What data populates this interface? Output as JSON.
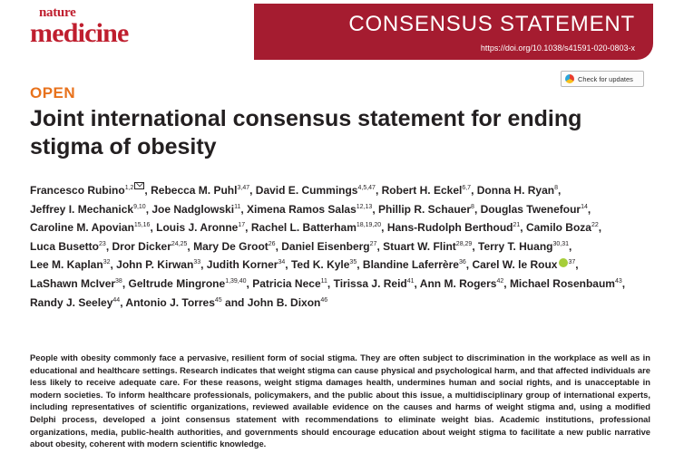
{
  "journal": {
    "name_line1": "nature",
    "name_line2": "medicine"
  },
  "banner": {
    "article_type": "CONSENSUS STATEMENT",
    "doi": "https://doi.org/10.1038/s41591-020-0803-x"
  },
  "check_updates": {
    "label": "Check for updates",
    "icon": "crossmark-icon"
  },
  "access_label": "OPEN",
  "title": "Joint international consensus statement for ending stigma of obesity",
  "authors": [
    {
      "name": "Francesco Rubino",
      "aff": "1,2",
      "corresponding": true
    },
    {
      "name": "Rebecca M. Puhl",
      "aff": "3,47"
    },
    {
      "name": "David E. Cummings",
      "aff": "4,5,47"
    },
    {
      "name": "Robert H. Eckel",
      "aff": "6,7"
    },
    {
      "name": "Donna H. Ryan",
      "aff": "8"
    },
    {
      "name": "Jeffrey I. Mechanick",
      "aff": "9,10"
    },
    {
      "name": "Joe Nadglowski",
      "aff": "11"
    },
    {
      "name": "Ximena Ramos Salas",
      "aff": "12,13"
    },
    {
      "name": "Phillip R. Schauer",
      "aff": "8"
    },
    {
      "name": "Douglas Twenefour",
      "aff": "14"
    },
    {
      "name": "Caroline M. Apovian",
      "aff": "15,16"
    },
    {
      "name": "Louis J. Aronne",
      "aff": "17"
    },
    {
      "name": "Rachel L. Batterham",
      "aff": "18,19,20"
    },
    {
      "name": "Hans-Rudolph Berthoud",
      "aff": "21"
    },
    {
      "name": "Camilo Boza",
      "aff": "22"
    },
    {
      "name": "Luca Busetto",
      "aff": "23"
    },
    {
      "name": "Dror Dicker",
      "aff": "24,25"
    },
    {
      "name": "Mary De Groot",
      "aff": "26"
    },
    {
      "name": "Daniel Eisenberg",
      "aff": "27"
    },
    {
      "name": "Stuart W. Flint",
      "aff": "28,29"
    },
    {
      "name": "Terry T. Huang",
      "aff": "30,31"
    },
    {
      "name": "Lee M. Kaplan",
      "aff": "32"
    },
    {
      "name": "John P. Kirwan",
      "aff": "33"
    },
    {
      "name": "Judith Korner",
      "aff": "34"
    },
    {
      "name": "Ted K. Kyle",
      "aff": "35"
    },
    {
      "name": "Blandine Laferrère",
      "aff": "36"
    },
    {
      "name": "Carel W. le Roux",
      "aff": "37",
      "orcid": true
    },
    {
      "name": "LaShawn McIver",
      "aff": "38"
    },
    {
      "name": "Geltrude Mingrone",
      "aff": "1,39,40"
    },
    {
      "name": "Patricia Nece",
      "aff": "11"
    },
    {
      "name": "Tirissa J. Reid",
      "aff": "41"
    },
    {
      "name": "Ann M. Rogers",
      "aff": "42"
    },
    {
      "name": "Michael Rosenbaum",
      "aff": "43"
    },
    {
      "name": "Randy J. Seeley",
      "aff": "44"
    },
    {
      "name": "Antonio J. Torres",
      "aff": "45"
    },
    {
      "name": "John B. Dixon",
      "aff": "46"
    }
  ],
  "author_separator": ",",
  "author_final_conjunction": "and",
  "abstract": "People with obesity commonly face a pervasive, resilient form of social stigma. They are often subject to discrimination in the workplace as well as in educational and healthcare settings. Research indicates that weight stigma can cause physical and psychological harm, and that affected individuals are less likely to receive adequate care. For these reasons, weight stigma damages health, undermines human and social rights, and is unacceptable in modern societies. To inform healthcare professionals, policymakers, and the public about this issue, a multidisciplinary group of international experts, including representatives of scientific organizations, reviewed available evidence on the causes and harms of weight stigma and, using a modified Delphi process, developed a joint consensus statement with recommendations to eliminate weight bias. Academic institutions, professional organizations, media, public-health authorities, and governments should encourage education about weight stigma to facilitate a new public narrative about obesity, coherent with modern scientific knowledge."
}
